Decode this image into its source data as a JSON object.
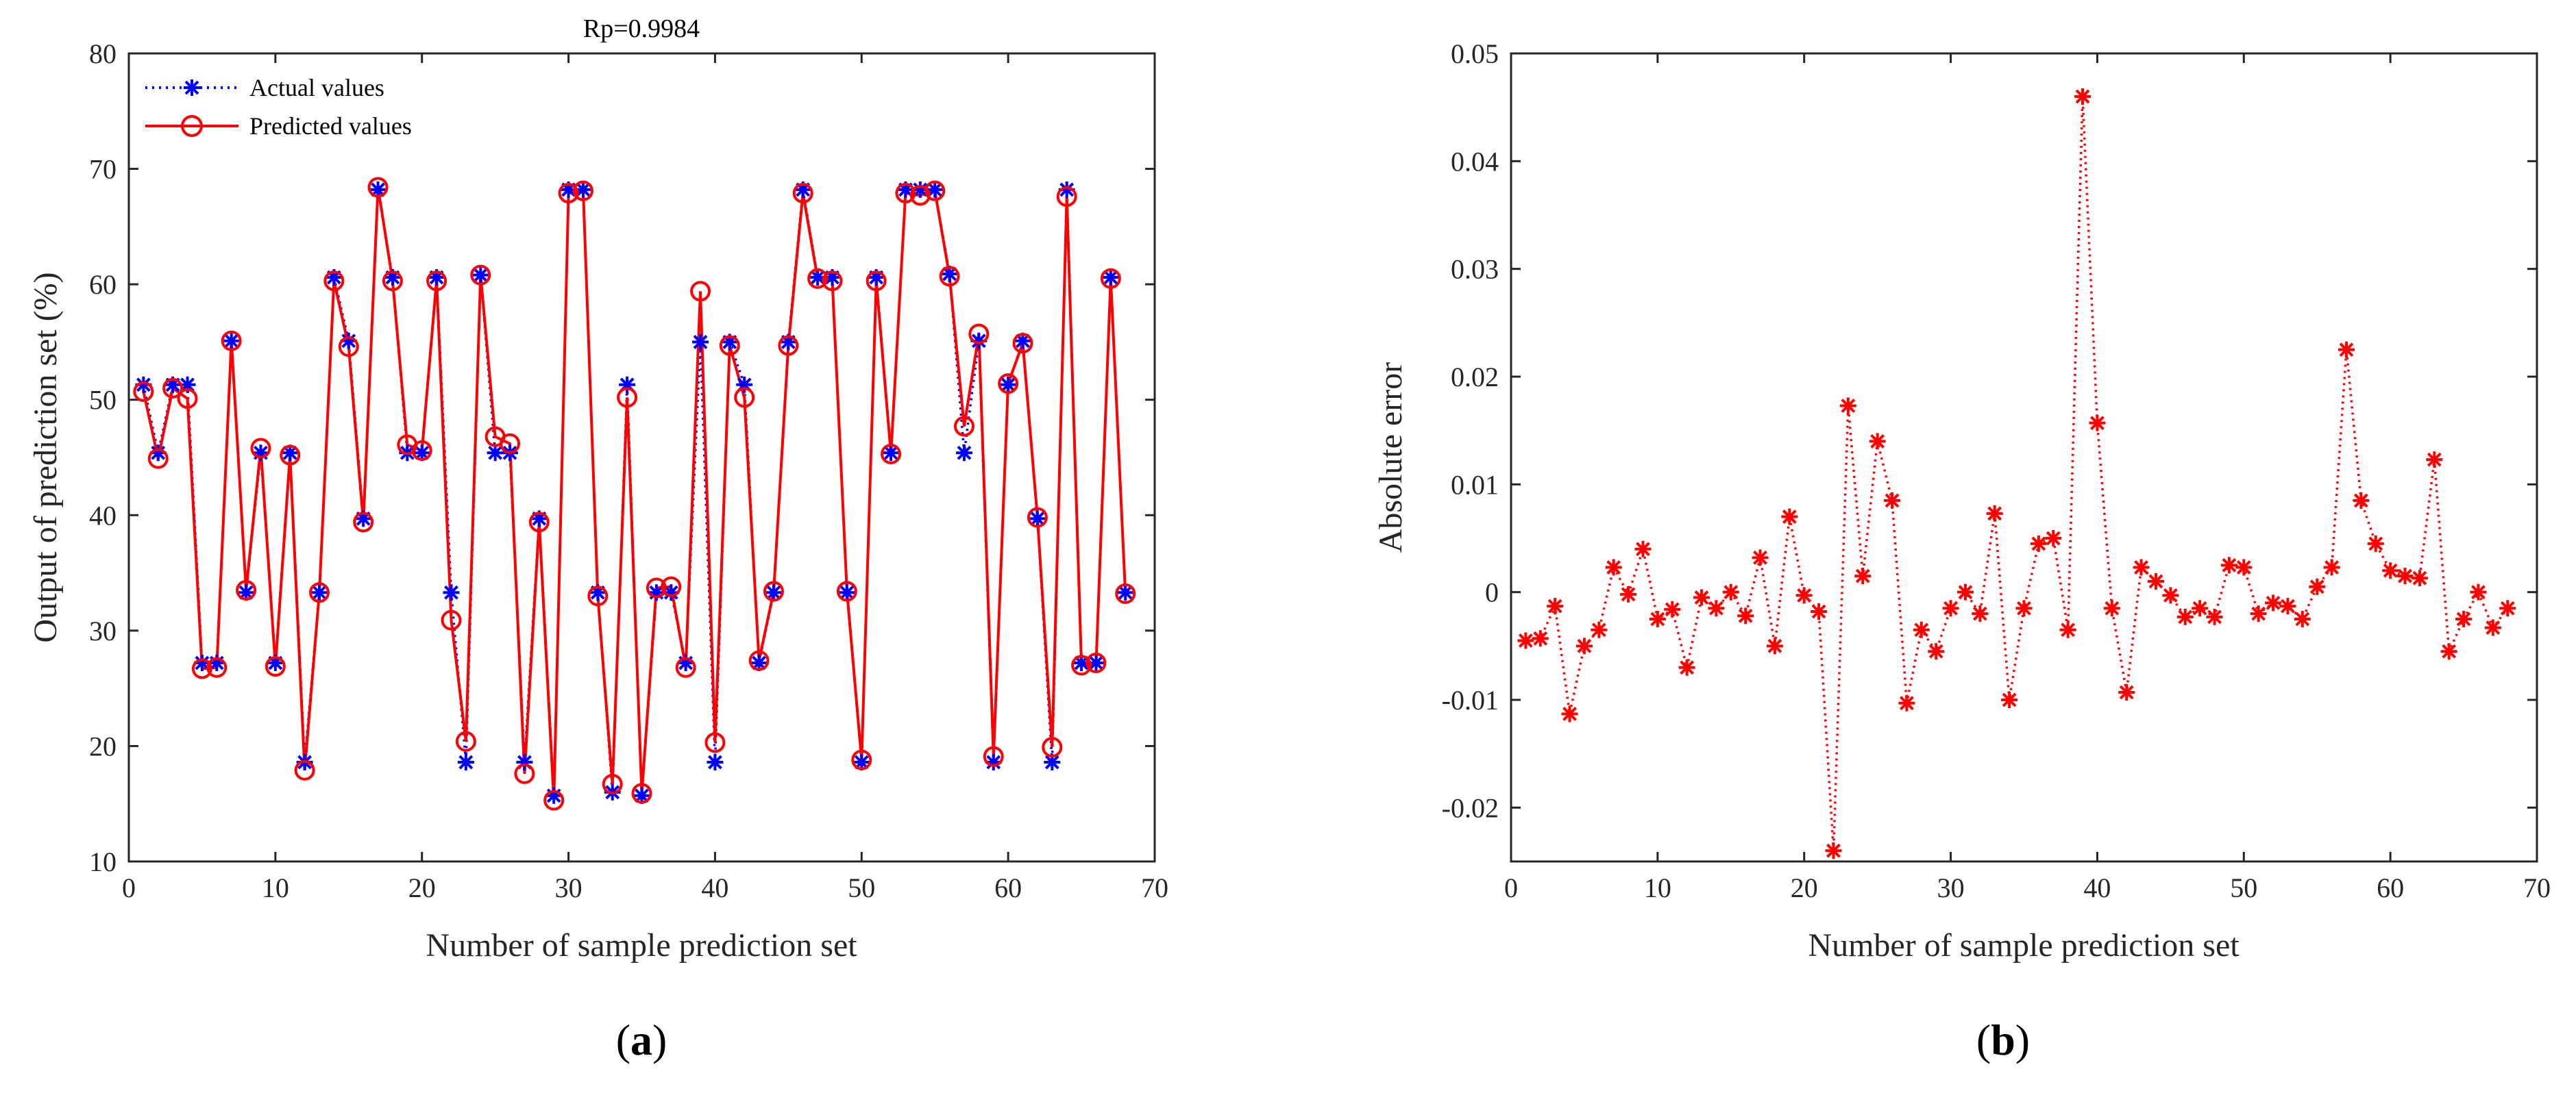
{
  "colors": {
    "actual": "#0000ff",
    "predicted": "#ff0000",
    "error": "#ff0000",
    "axis": "#262626"
  },
  "chart_data": [
    {
      "type": "line",
      "panel_label": "(a)",
      "title": "Rp=0.9984",
      "xlabel": "Number of sample prediction set",
      "ylabel": "Output of prediction set (%)",
      "xlim": [
        0,
        70
      ],
      "ylim": [
        10,
        80
      ],
      "xticks": [
        0,
        10,
        20,
        30,
        40,
        50,
        60,
        70
      ],
      "yticks": [
        10,
        20,
        30,
        40,
        50,
        60,
        70,
        80
      ],
      "legend_position": "top-left",
      "x": [
        1,
        2,
        3,
        4,
        5,
        6,
        7,
        8,
        9,
        10,
        11,
        12,
        13,
        14,
        15,
        16,
        17,
        18,
        19,
        20,
        21,
        22,
        23,
        24,
        25,
        26,
        27,
        28,
        29,
        30,
        31,
        32,
        33,
        34,
        35,
        36,
        37,
        38,
        39,
        40,
        41,
        42,
        43,
        44,
        45,
        46,
        47,
        48,
        49,
        50,
        51,
        52,
        53,
        54,
        55,
        56,
        57,
        58,
        59,
        60,
        61,
        62,
        63,
        64,
        65,
        66,
        67,
        68
      ],
      "series": [
        {
          "name": "Actual values",
          "marker": "asterisk",
          "line": "dotted",
          "values": [
            51.3,
            45.4,
            51.3,
            51.3,
            27.2,
            27.2,
            55.1,
            33.3,
            45.4,
            27.2,
            45.4,
            18.6,
            33.3,
            60.6,
            55.1,
            39.7,
            68.2,
            60.6,
            45.4,
            45.4,
            60.6,
            33.3,
            18.6,
            60.8,
            45.4,
            45.4,
            18.6,
            39.7,
            15.7,
            68.2,
            68.2,
            33.3,
            16.0,
            51.3,
            15.7,
            33.3,
            33.3,
            27.2,
            55.0,
            18.6,
            55.0,
            51.3,
            27.2,
            33.3,
            55.0,
            68.2,
            60.6,
            60.6,
            33.3,
            18.6,
            60.6,
            45.4,
            68.2,
            68.2,
            68.2,
            60.9,
            45.4,
            55.1,
            18.6,
            51.3,
            55.1,
            39.7,
            18.6,
            68.2,
            27.2,
            27.2,
            60.6,
            33.3
          ]
        },
        {
          "name": "Predicted values",
          "marker": "circle",
          "line": "solid",
          "values": [
            50.7,
            44.9,
            51.0,
            50.1,
            26.7,
            26.8,
            55.1,
            33.5,
            45.8,
            26.9,
            45.2,
            17.9,
            33.3,
            60.3,
            54.6,
            39.4,
            68.4,
            60.3,
            46.1,
            45.6,
            60.3,
            30.9,
            20.4,
            60.8,
            46.8,
            46.2,
            17.6,
            39.4,
            15.3,
            67.9,
            68.1,
            33.0,
            16.7,
            50.2,
            15.9,
            33.7,
            33.8,
            26.8,
            59.4,
            20.3,
            54.7,
            50.2,
            27.4,
            33.4,
            54.7,
            67.9,
            60.5,
            60.3,
            33.4,
            18.8,
            60.3,
            45.3,
            67.9,
            67.7,
            68.1,
            60.7,
            47.7,
            55.7,
            19.1,
            51.4,
            54.9,
            39.8,
            19.9,
            67.6,
            27.0,
            27.2,
            60.5,
            33.2
          ]
        }
      ]
    },
    {
      "type": "line",
      "panel_label": "(b)",
      "title": "",
      "xlabel": "Number of sample prediction set",
      "ylabel": "Absolute error",
      "xlim": [
        0,
        70
      ],
      "ylim": [
        -0.025,
        0.05
      ],
      "xticks": [
        0,
        10,
        20,
        30,
        40,
        50,
        60,
        70
      ],
      "xtick_labels": [
        "0",
        "10",
        "20",
        "30",
        "40",
        "50",
        "60",
        "70"
      ],
      "yticks": [
        -0.02,
        -0.01,
        0,
        0.01,
        0.02,
        0.03,
        0.04,
        0.05
      ],
      "ytick_labels": [
        "-0.02",
        "-0.01",
        "0",
        "0.01",
        "0.02",
        "0.03",
        "0.04",
        "0.05"
      ],
      "x": [
        1,
        2,
        3,
        4,
        5,
        6,
        7,
        8,
        9,
        10,
        11,
        12,
        13,
        14,
        15,
        16,
        17,
        18,
        19,
        20,
        21,
        22,
        23,
        24,
        25,
        26,
        27,
        28,
        29,
        30,
        31,
        32,
        33,
        34,
        35,
        36,
        37,
        38,
        39,
        40,
        41,
        42,
        43,
        44,
        45,
        46,
        47,
        48,
        49,
        50,
        51,
        52,
        53,
        54,
        55,
        56,
        57,
        58,
        59,
        60,
        61,
        62,
        63,
        64,
        65,
        66,
        67,
        68
      ],
      "series": [
        {
          "name": "Absolute error",
          "marker": "asterisk",
          "line": "dotted",
          "values": [
            -0.0045,
            -0.0043,
            -0.0013,
            -0.0113,
            -0.005,
            -0.0035,
            0.0023,
            -0.0002,
            0.004,
            -0.0025,
            -0.0016,
            -0.007,
            -0.0005,
            -0.0015,
            0.0,
            -0.0022,
            0.0032,
            -0.005,
            0.007,
            -0.0003,
            -0.0018,
            -0.024,
            0.0173,
            0.0015,
            0.014,
            0.0085,
            -0.0103,
            -0.0035,
            -0.0055,
            -0.0015,
            0.0,
            -0.002,
            0.0073,
            -0.01,
            -0.0015,
            0.0045,
            0.005,
            -0.0035,
            0.046,
            0.0157,
            -0.0015,
            -0.0093,
            0.0023,
            0.001,
            -0.0003,
            -0.0023,
            -0.0015,
            -0.0023,
            0.0025,
            0.0023,
            -0.002,
            -0.001,
            -0.0013,
            -0.0025,
            0.0005,
            0.0023,
            0.0225,
            0.0085,
            0.0045,
            0.002,
            0.0015,
            0.0013,
            0.0123,
            -0.0055,
            -0.0025,
            0.0,
            -0.0033,
            -0.0015
          ]
        }
      ]
    }
  ]
}
